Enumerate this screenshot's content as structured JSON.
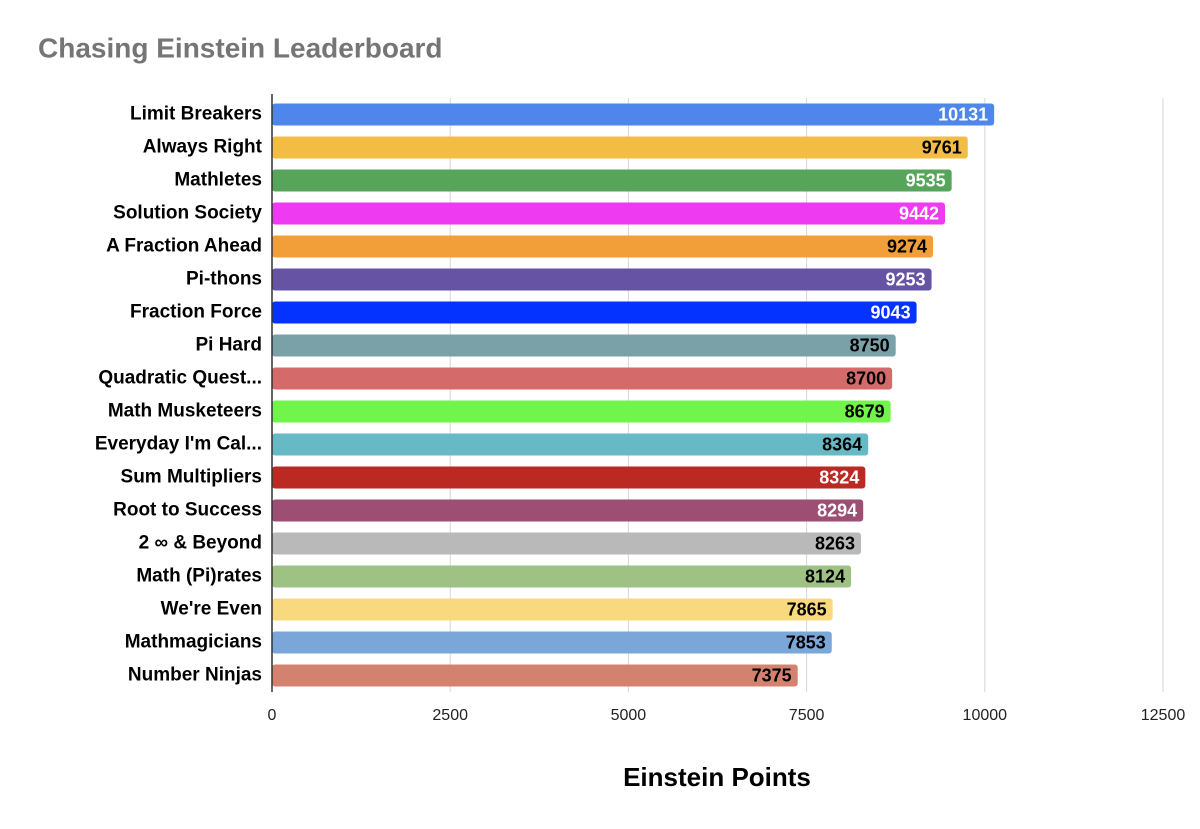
{
  "chart_data": {
    "type": "hbar",
    "title": "Chasing Einstein Leaderboard",
    "x_label": "Einstein Points",
    "categories": [
      "Limit Breakers",
      "Always Right",
      "Mathletes",
      "Solution Society",
      "A Fraction Ahead",
      "Pi-thons",
      "Fraction Force",
      "Pi Hard",
      "Quadratic Quest...",
      "Math Musketeers",
      "Everyday I'm Cal...",
      "Sum Multipliers",
      "Root to Success",
      "2 ∞ & Beyond",
      "Math (Pi)rates",
      "We're Even",
      "Mathmagicians",
      "Number Ninjas"
    ],
    "values": [
      10131,
      9761,
      9535,
      9442,
      9274,
      9253,
      9043,
      8750,
      8700,
      8679,
      8364,
      8324,
      8294,
      8263,
      8124,
      7865,
      7853,
      7375
    ],
    "colors": [
      "#4f86ec",
      "#f2bd42",
      "#57a55b",
      "#ee3af0",
      "#f29e39",
      "#6753a4",
      "#0433ff",
      "#7ba1a8",
      "#d46a6a",
      "#72f54a",
      "#67b9c6",
      "#bb2a22",
      "#9c4f73",
      "#b9b9b9",
      "#9ec283",
      "#f9d97d",
      "#7ba6d8",
      "#d48270"
    ],
    "label_colors": [
      "#ffffff",
      "#000000",
      "#ffffff",
      "#ffffff",
      "#000000",
      "#ffffff",
      "#ffffff",
      "#000000",
      "#000000",
      "#000000",
      "#000000",
      "#ffffff",
      "#ffffff",
      "#000000",
      "#000000",
      "#000000",
      "#000000",
      "#000000"
    ],
    "xlim": [
      0,
      12500
    ],
    "xticks": [
      0,
      2500,
      5000,
      7500,
      10000,
      12500
    ],
    "grid": true
  }
}
